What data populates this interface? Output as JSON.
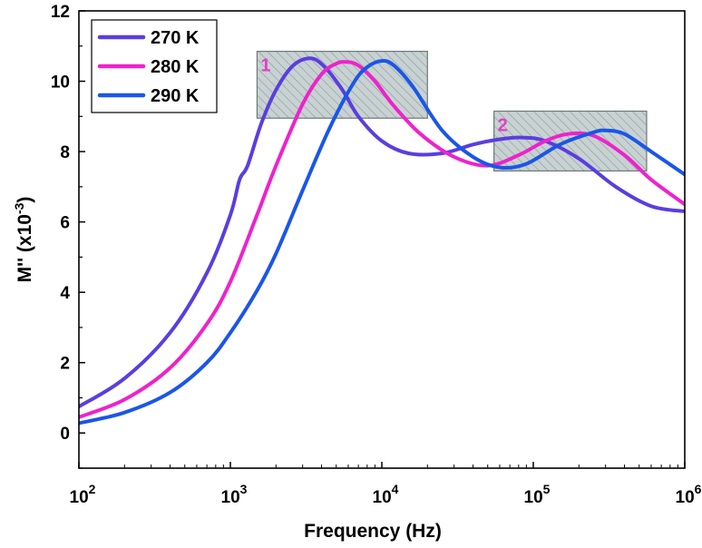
{
  "chart_data": {
    "type": "line",
    "title": "",
    "xlabel": "Frequency (Hz)",
    "ylabel_main": "M'' (x10",
    "ylabel_exp": "-3",
    "ylabel_close": ")",
    "x_scale": "log",
    "xlim": [
      100,
      1000000
    ],
    "ylim": [
      -1,
      12
    ],
    "x_ticks": [
      {
        "value": 100,
        "base": "10",
        "exp": "2"
      },
      {
        "value": 1000,
        "base": "10",
        "exp": "3"
      },
      {
        "value": 10000,
        "base": "10",
        "exp": "4"
      },
      {
        "value": 100000,
        "base": "10",
        "exp": "5"
      },
      {
        "value": 1000000,
        "base": "10",
        "exp": "6"
      }
    ],
    "y_ticks": [
      0,
      2,
      4,
      6,
      8,
      10,
      12
    ],
    "legend_position": "top-left",
    "series": [
      {
        "name": "270 K",
        "color": "#5a3ee0",
        "x": [
          100,
          200,
          400,
          700,
          1000,
          1150,
          1300,
          1600,
          2000,
          2600,
          3400,
          4200,
          5500,
          7000,
          10000,
          15000,
          25000,
          40000,
          60000,
          85000,
          120000,
          200000,
          350000,
          600000,
          1000000
        ],
        "y": [
          0.75,
          1.55,
          2.85,
          4.55,
          6.2,
          7.2,
          7.6,
          8.8,
          9.75,
          10.45,
          10.65,
          10.4,
          9.75,
          9.0,
          8.3,
          7.95,
          7.95,
          8.2,
          8.35,
          8.4,
          8.3,
          7.8,
          7.0,
          6.45,
          6.3
        ]
      },
      {
        "name": "280 K",
        "color": "#ee22cc",
        "x": [
          100,
          200,
          400,
          700,
          1000,
          1500,
          2000,
          3000,
          4000,
          5000,
          5800,
          7000,
          9000,
          12000,
          18000,
          30000,
          50000,
          80000,
          120000,
          170000,
          250000,
          400000,
          600000,
          1000000
        ],
        "y": [
          0.45,
          0.95,
          1.85,
          3.1,
          4.3,
          6.2,
          7.6,
          9.35,
          10.2,
          10.5,
          10.55,
          10.45,
          10.0,
          9.3,
          8.5,
          7.85,
          7.6,
          7.9,
          8.3,
          8.5,
          8.45,
          7.9,
          7.2,
          6.5
        ]
      },
      {
        "name": "290 K",
        "color": "#1a56e8",
        "x": [
          100,
          200,
          400,
          700,
          1000,
          1500,
          2000,
          3000,
          4500,
          6500,
          8000,
          10000,
          12000,
          16000,
          25000,
          40000,
          60000,
          90000,
          150000,
          250000,
          300000,
          400000,
          600000,
          1000000
        ],
        "y": [
          0.28,
          0.58,
          1.15,
          2.0,
          2.85,
          4.05,
          5.1,
          6.9,
          8.65,
          9.95,
          10.4,
          10.58,
          10.45,
          9.85,
          8.6,
          7.85,
          7.55,
          7.65,
          8.2,
          8.55,
          8.6,
          8.5,
          8.0,
          7.35
        ]
      }
    ],
    "annotations": [
      {
        "label": "1",
        "x_range": [
          1500,
          20000
        ],
        "y_range": [
          8.95,
          10.85
        ],
        "color": "#e040c8"
      },
      {
        "label": "2",
        "x_range": [
          55000,
          560000
        ],
        "y_range": [
          7.45,
          9.15
        ],
        "color": "#e040c8"
      }
    ]
  }
}
